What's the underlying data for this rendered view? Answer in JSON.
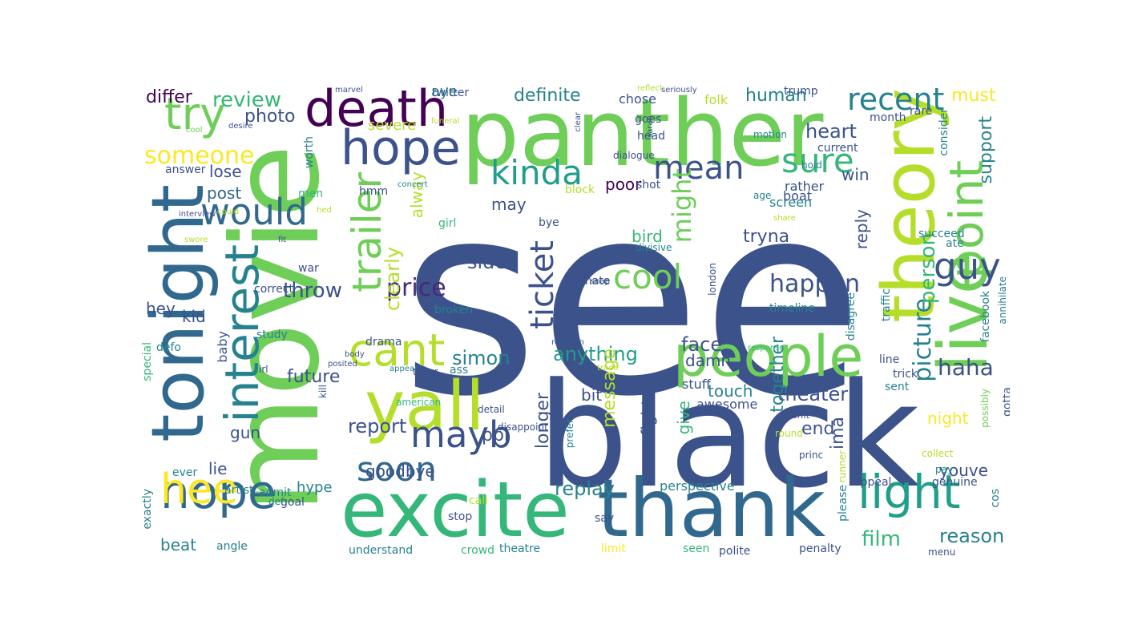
{
  "palette": {
    "indigo": "#3b528b",
    "dark_purple": "#440154",
    "purple": "#482878",
    "blue": "#31688e",
    "teal": "#26828e",
    "green_teal": "#1f9e89",
    "green": "#35b779",
    "light_green": "#6ece58",
    "yellow_green": "#b5de2b",
    "yellow": "#fde725"
  },
  "words": [
    {
      "text": "see",
      "color": "#3b528b"
    },
    {
      "text": "black",
      "color": "#3b528b"
    },
    {
      "text": "movie",
      "color": "#6ece58"
    },
    {
      "text": "panther",
      "color": "#6ece58"
    },
    {
      "text": "thank",
      "color": "#31688e"
    },
    {
      "text": "excite",
      "color": "#35b779"
    },
    {
      "text": "tonight",
      "color": "#31688e"
    },
    {
      "text": "theory",
      "color": "#b5de2b"
    },
    {
      "text": "yall",
      "color": "#b5de2b"
    },
    {
      "text": "live",
      "color": "#6ece58"
    },
    {
      "text": "people",
      "color": "#6ece58"
    },
    {
      "text": "death",
      "color": "#440154"
    },
    {
      "text": "hope",
      "color": "#3b528b"
    },
    {
      "text": "point",
      "color": "#6ece58"
    },
    {
      "text": "light",
      "color": "#1f9e89"
    },
    {
      "text": "interest",
      "color": "#26828e"
    },
    {
      "text": "nope",
      "color": "#31688e"
    },
    {
      "text": "hee",
      "color": "#fde725"
    },
    {
      "text": "trailer",
      "color": "#6ece58"
    },
    {
      "text": "try",
      "color": "#6ece58"
    },
    {
      "text": "cant",
      "color": "#b5de2b"
    },
    {
      "text": "would",
      "color": "#31688e"
    },
    {
      "text": "kinda",
      "color": "#1f9e89"
    },
    {
      "text": "cool",
      "color": "#6ece58"
    },
    {
      "text": "ticket",
      "color": "#3b528b"
    },
    {
      "text": "sure",
      "color": "#35b779"
    },
    {
      "text": "mean",
      "color": "#3b528b"
    },
    {
      "text": "mayb",
      "color": "#3b528b"
    },
    {
      "text": "guy",
      "color": "#3b528b"
    },
    {
      "text": "soon",
      "color": "#31688e"
    },
    {
      "text": "recent",
      "color": "#26828e"
    },
    {
      "text": "someone",
      "color": "#fde725"
    },
    {
      "text": "happen",
      "color": "#3b528b"
    },
    {
      "text": "price",
      "color": "#482878"
    },
    {
      "text": "review",
      "color": "#35b779"
    },
    {
      "text": "haha",
      "color": "#3b528b"
    },
    {
      "text": "picture",
      "color": "#26828e"
    },
    {
      "text": "person",
      "color": "#35b779"
    },
    {
      "text": "might",
      "color": "#6ece58"
    },
    {
      "text": "anything",
      "color": "#1f9e89"
    },
    {
      "text": "simon",
      "color": "#26828e"
    },
    {
      "text": "heart",
      "color": "#3b528b"
    },
    {
      "text": "throw",
      "color": "#3b528b"
    },
    {
      "text": "clearly",
      "color": "#b5de2b"
    },
    {
      "text": "report",
      "color": "#3b528b"
    },
    {
      "text": "film",
      "color": "#35b779"
    },
    {
      "text": "reason",
      "color": "#26828e"
    },
    {
      "text": "replay",
      "color": "#26828e"
    },
    {
      "text": "face",
      "color": "#3b528b"
    },
    {
      "text": "theater",
      "color": "#3b528b"
    },
    {
      "text": "side",
      "color": "#3b528b"
    },
    {
      "text": "future",
      "color": "#3b528b"
    },
    {
      "text": "tryna",
      "color": "#3b528b"
    },
    {
      "text": "end",
      "color": "#3b528b"
    },
    {
      "text": "ppl",
      "color": "#3b528b"
    },
    {
      "text": "longer",
      "color": "#3b528b"
    },
    {
      "text": "message",
      "color": "#b5de2b"
    },
    {
      "text": "together",
      "color": "#26828e"
    },
    {
      "text": "support",
      "color": "#26828e"
    },
    {
      "text": "definite",
      "color": "#26828e"
    },
    {
      "text": "photo",
      "color": "#3b528b"
    },
    {
      "text": "differ",
      "color": "#440154"
    },
    {
      "text": "must",
      "color": "#fde725"
    },
    {
      "text": "human",
      "color": "#26828e"
    },
    {
      "text": "post",
      "color": "#31688e"
    },
    {
      "text": "lose",
      "color": "#3b528b"
    },
    {
      "text": "win",
      "color": "#3b528b"
    },
    {
      "text": "reply",
      "color": "#3b528b"
    },
    {
      "text": "bird",
      "color": "#35b779"
    },
    {
      "text": "poor",
      "color": "#440154"
    },
    {
      "text": "may",
      "color": "#3b528b"
    },
    {
      "text": "alway",
      "color": "#b5de2b"
    },
    {
      "text": "severe",
      "color": "#b5de2b"
    },
    {
      "text": "hey",
      "color": "#3b528b"
    },
    {
      "text": "kid",
      "color": "#3b528b"
    },
    {
      "text": "gun",
      "color": "#3b528b"
    },
    {
      "text": "lie",
      "color": "#3b528b"
    },
    {
      "text": "bit",
      "color": "#3b528b"
    },
    {
      "text": "fight",
      "color": "#3b528b"
    },
    {
      "text": "give",
      "color": "#35b779"
    },
    {
      "text": "touch",
      "color": "#26828e"
    },
    {
      "text": "night",
      "color": "#fde725"
    },
    {
      "text": "ima",
      "color": "#3b528b"
    },
    {
      "text": "youve",
      "color": "#3b528b"
    },
    {
      "text": "goodbye",
      "color": "#3b528b"
    },
    {
      "text": "hype",
      "color": "#26828e"
    },
    {
      "text": "beat",
      "color": "#26828e"
    },
    {
      "text": "damn",
      "color": "#3b528b"
    },
    {
      "text": "aye",
      "color": "#26828e"
    },
    {
      "text": "twitter",
      "color": "#3b528b"
    },
    {
      "text": "chose",
      "color": "#3b528b"
    },
    {
      "text": "folk",
      "color": "#b5de2b"
    },
    {
      "text": "trump",
      "color": "#3b528b"
    },
    {
      "text": "goes",
      "color": "#3b528b"
    },
    {
      "text": "head",
      "color": "#3b528b"
    },
    {
      "text": "month",
      "color": "#3b528b"
    },
    {
      "text": "current",
      "color": "#3b528b"
    },
    {
      "text": "rare",
      "color": "#3b528b"
    },
    {
      "text": "consider",
      "color": "#26828e"
    },
    {
      "text": "succeed",
      "color": "#26828e"
    },
    {
      "text": "screen",
      "color": "#26828e"
    },
    {
      "text": "rather",
      "color": "#3b528b"
    },
    {
      "text": "boat",
      "color": "#3b528b"
    },
    {
      "text": "block",
      "color": "#b5de2b"
    },
    {
      "text": "shot",
      "color": "#3b528b"
    },
    {
      "text": "hmm",
      "color": "#3b528b"
    },
    {
      "text": "answer",
      "color": "#3b528b"
    },
    {
      "text": "worth",
      "color": "#26828e"
    },
    {
      "text": "men",
      "color": "#35b779"
    },
    {
      "text": "war",
      "color": "#3b528b"
    },
    {
      "text": "baby",
      "color": "#3b528b"
    },
    {
      "text": "study",
      "color": "#26828e"
    },
    {
      "text": "drama",
      "color": "#3b528b"
    },
    {
      "text": "ass",
      "color": "#26828e"
    },
    {
      "text": "stuff",
      "color": "#3b528b"
    },
    {
      "text": "awesome",
      "color": "#3b528b"
    },
    {
      "text": "mate",
      "color": "#3b528b"
    },
    {
      "text": "broken",
      "color": "#26828e"
    },
    {
      "text": "sent",
      "color": "#26828e"
    },
    {
      "text": "gotta",
      "color": "#3b528b"
    },
    {
      "text": "line",
      "color": "#3b528b"
    },
    {
      "text": "trick",
      "color": "#3b528b"
    },
    {
      "text": "timeline",
      "color": "#26828e"
    },
    {
      "text": "disagree",
      "color": "#26828e"
    },
    {
      "text": "defo",
      "color": "#26828e"
    },
    {
      "text": "special",
      "color": "#35b779"
    },
    {
      "text": "exactly",
      "color": "#26828e"
    },
    {
      "text": "angle",
      "color": "#26828e"
    },
    {
      "text": "understand",
      "color": "#26828e"
    },
    {
      "text": "crowd",
      "color": "#35b779"
    },
    {
      "text": "theatre",
      "color": "#26828e"
    },
    {
      "text": "limit",
      "color": "#fde725"
    },
    {
      "text": "seen",
      "color": "#35b779"
    },
    {
      "text": "polite",
      "color": "#3b528b"
    },
    {
      "text": "penalty",
      "color": "#3b528b"
    },
    {
      "text": "appeal",
      "color": "#3b528b"
    },
    {
      "text": "genuine",
      "color": "#3b528b"
    },
    {
      "text": "cos",
      "color": "#26828e"
    },
    {
      "text": "please",
      "color": "#26828e"
    },
    {
      "text": "perspective",
      "color": "#26828e"
    },
    {
      "text": "goal",
      "color": "#3b528b"
    },
    {
      "text": "def",
      "color": "#26828e"
    },
    {
      "text": "stop",
      "color": "#3b528b"
    },
    {
      "text": "call",
      "color": "#b5de2b"
    },
    {
      "text": "say",
      "color": "#3b528b"
    },
    {
      "text": "admit",
      "color": "#26828e"
    },
    {
      "text": "artist",
      "color": "#26828e"
    },
    {
      "text": "ever",
      "color": "#26828e"
    },
    {
      "text": "girl",
      "color": "#35b779"
    },
    {
      "text": "bye",
      "color": "#3b528b"
    },
    {
      "text": "divisive",
      "color": "#26828e"
    },
    {
      "text": "dialogue",
      "color": "#3b528b"
    },
    {
      "text": "motion",
      "color": "#26828e"
    },
    {
      "text": "hold",
      "color": "#26828e"
    },
    {
      "text": "age",
      "color": "#26828e"
    },
    {
      "text": "share",
      "color": "#b5de2b"
    },
    {
      "text": "snap",
      "color": "#3b528b"
    },
    {
      "text": "london",
      "color": "#3b528b"
    },
    {
      "text": "traffic",
      "color": "#26828e"
    },
    {
      "text": "ate",
      "color": "#26828e"
    },
    {
      "text": "facebook",
      "color": "#26828e"
    },
    {
      "text": "annihilate",
      "color": "#26828e"
    },
    {
      "text": "possibly",
      "color": "#6ece58"
    },
    {
      "text": "response",
      "color": "#35b779"
    },
    {
      "text": "trade",
      "color": "#b5de2b"
    },
    {
      "text": "reaction",
      "color": "#3b528b"
    },
    {
      "text": "posited",
      "color": "#3b528b"
    },
    {
      "text": "body",
      "color": "#3b528b"
    },
    {
      "text": "appear",
      "color": "#26828e"
    },
    {
      "text": "theyr",
      "color": "#3b528b"
    },
    {
      "text": "irl",
      "color": "#3b528b"
    },
    {
      "text": "kill",
      "color": "#3b528b"
    },
    {
      "text": "american",
      "color": "#35b779"
    },
    {
      "text": "detail",
      "color": "#3b528b"
    },
    {
      "text": "disappoint",
      "color": "#3b528b"
    },
    {
      "text": "prefer",
      "color": "#26828e"
    },
    {
      "text": "round",
      "color": "#b5de2b"
    },
    {
      "text": "unit",
      "color": "#3b528b"
    },
    {
      "text": "runner",
      "color": "#b5de2b"
    },
    {
      "text": "princ",
      "color": "#3b528b"
    },
    {
      "text": "collect",
      "color": "#b5de2b"
    },
    {
      "text": "pay",
      "color": "#26828e"
    },
    {
      "text": "menu",
      "color": "#3b528b"
    },
    {
      "text": "marvel",
      "color": "#3b528b"
    },
    {
      "text": "reflect",
      "color": "#b5de2b"
    },
    {
      "text": "desire",
      "color": "#3b528b"
    },
    {
      "text": "cool",
      "color": "#6ece58"
    },
    {
      "text": "funeral",
      "color": "#b5de2b"
    },
    {
      "text": "clear",
      "color": "#3b528b"
    },
    {
      "text": "sarah",
      "color": "#3b528b"
    },
    {
      "text": "seriously",
      "color": "#3b528b"
    },
    {
      "text": "concert",
      "color": "#26828e"
    },
    {
      "text": "could",
      "color": "#b5de2b"
    },
    {
      "text": "hed",
      "color": "#b5de2b"
    },
    {
      "text": "interview",
      "color": "#3b528b"
    },
    {
      "text": "swore",
      "color": "#b5de2b"
    },
    {
      "text": "fit",
      "color": "#3b528b"
    },
    {
      "text": "correct",
      "color": "#3b528b"
    },
    {
      "text": "bless",
      "color": "#3b528b"
    },
    {
      "text": "able",
      "color": "#35b779"
    }
  ]
}
